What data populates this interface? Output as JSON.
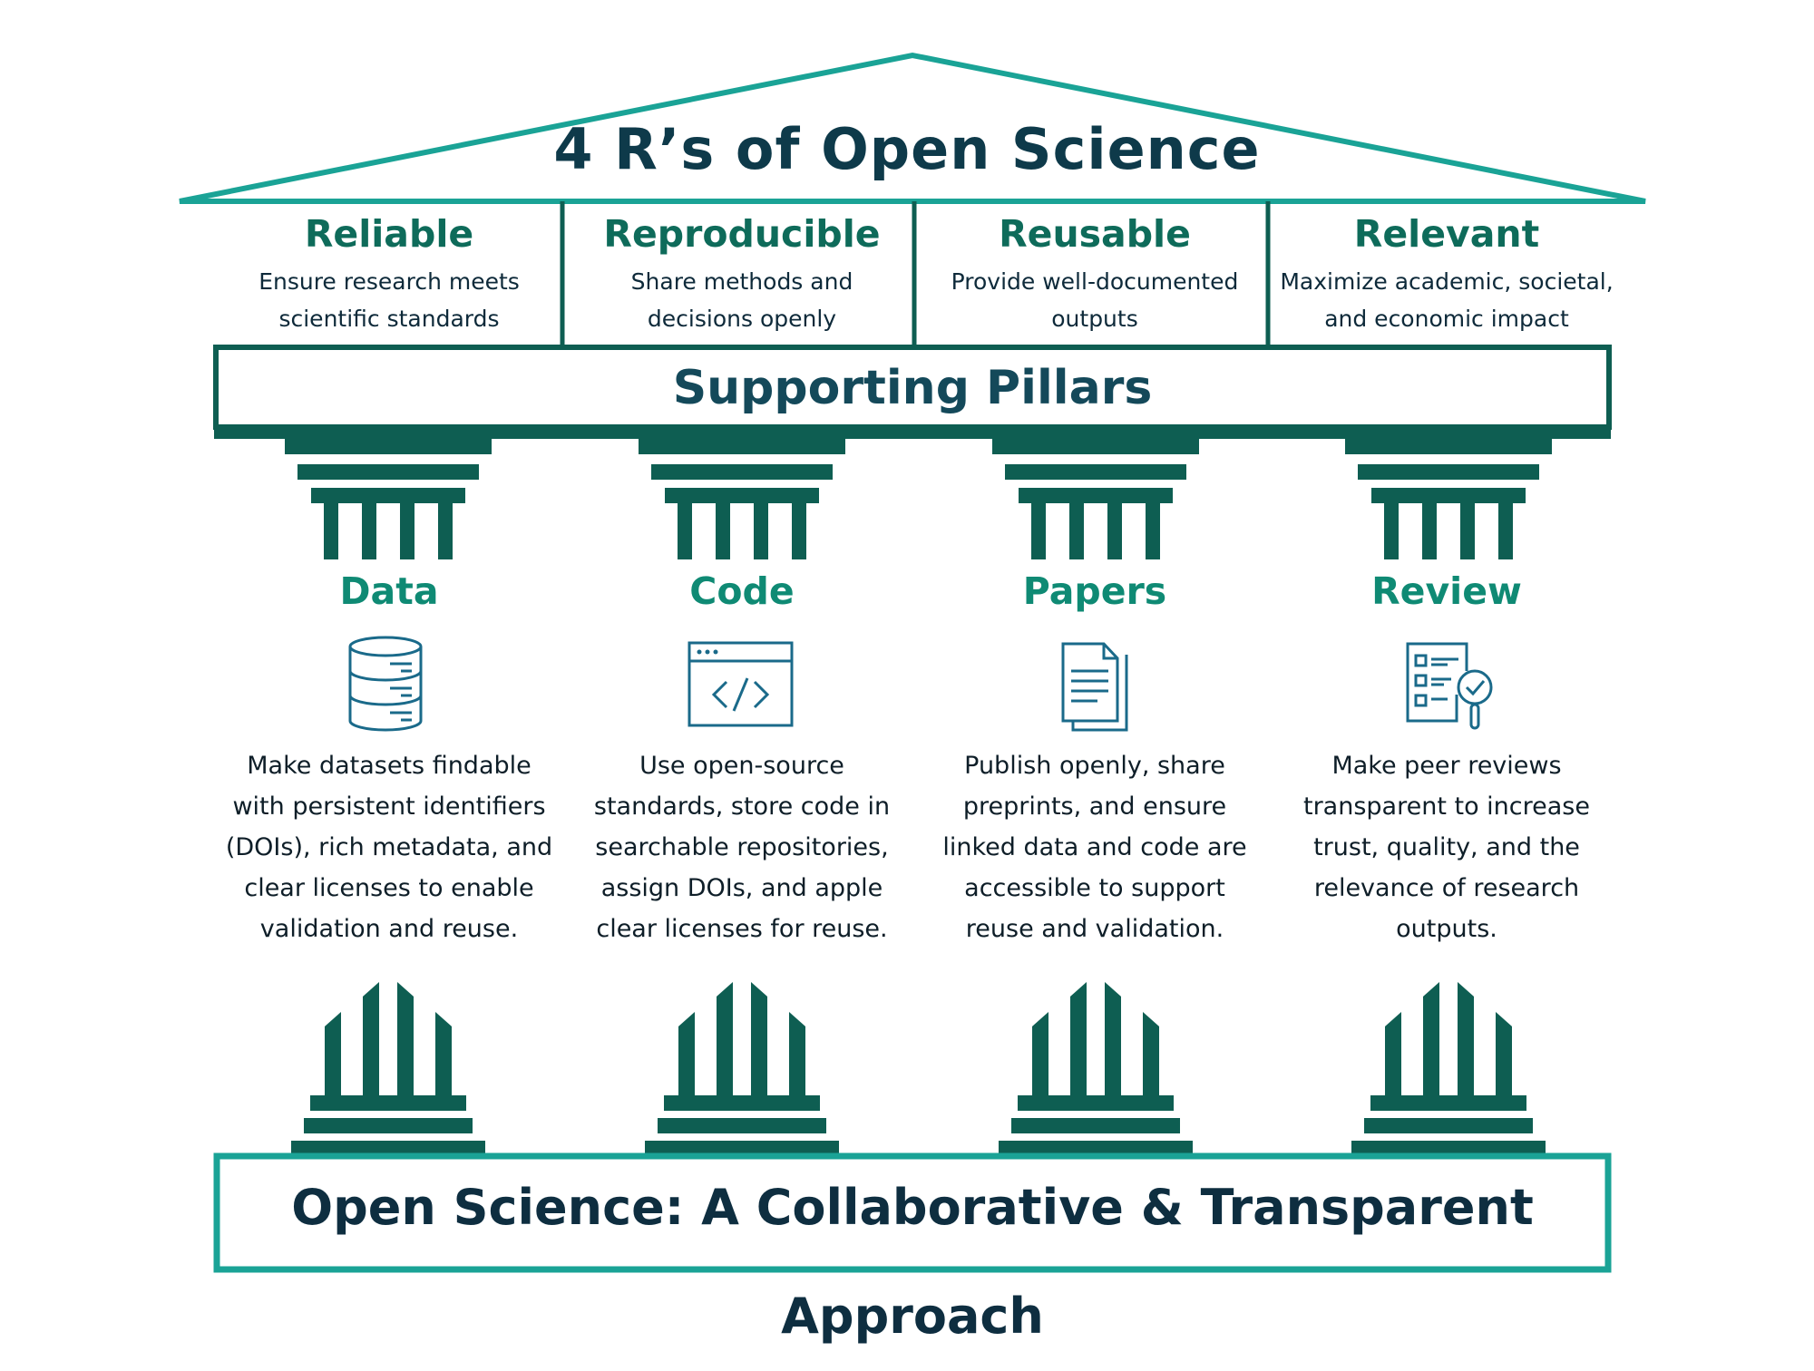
{
  "colors": {
    "roof_teal": "#1aa396",
    "dark_green": "#0e5e52",
    "title_navy": "#0e3a4a",
    "accent_green": "#0f8a74",
    "icon_blue": "#1a6a8a"
  },
  "roof": {
    "title": "4 R’s of Open Science"
  },
  "rs": [
    {
      "title": "Reliable",
      "line1": "Ensure research meets",
      "line2": "scientific standards"
    },
    {
      "title": "Reproducible",
      "line1": "Share methods and",
      "line2": "decisions openly"
    },
    {
      "title": "Reusable",
      "line1": "Provide well-documented",
      "line2": "outputs"
    },
    {
      "title": "Relevant",
      "line1": "Maximize academic, societal,",
      "line2": "and economic impact"
    }
  ],
  "banner": {
    "title": "Supporting Pillars"
  },
  "pillars": [
    {
      "title": "Data",
      "icon": "database-icon",
      "lines": [
        "Make datasets findable",
        "with persistent identifiers",
        "(DOIs), rich metadata, and",
        "clear licenses to enable",
        "validation and reuse."
      ]
    },
    {
      "title": "Code",
      "icon": "code-window-icon",
      "lines": [
        "Use open-source",
        "standards, store code in",
        "searchable repositories,",
        "assign DOIs, and apple",
        "clear licenses for reuse."
      ]
    },
    {
      "title": "Papers",
      "icon": "document-icon",
      "lines": [
        "Publish openly, share",
        "preprints, and ensure",
        "linked data and code are",
        "accessible to support",
        "reuse and validation."
      ]
    },
    {
      "title": "Review",
      "icon": "checklist-magnifier-icon",
      "lines": [
        "Make peer reviews",
        "transparent to increase",
        "trust, quality, and the",
        "relevance of research",
        "outputs."
      ]
    }
  ],
  "footer": {
    "title": "Open Science: A Collaborative & Transparent Approach"
  }
}
